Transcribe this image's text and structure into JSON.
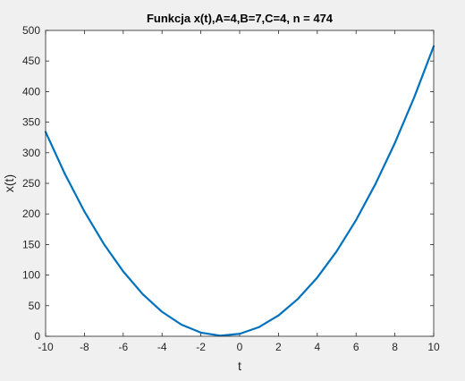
{
  "chart_data": {
    "type": "line",
    "title": "Funkcja x(t),A=4,B=7,C=4, n = 474",
    "xlabel": "t",
    "ylabel": "x(t)",
    "xlim": [
      -10,
      10
    ],
    "ylim": [
      0,
      500
    ],
    "xticks": [
      -10,
      -8,
      -6,
      -4,
      -2,
      0,
      2,
      4,
      6,
      8,
      10
    ],
    "yticks": [
      0,
      50,
      100,
      150,
      200,
      250,
      300,
      350,
      400,
      450,
      500
    ],
    "xtick_labels": [
      "-10",
      "-8",
      "-6",
      "-4",
      "-2",
      "0",
      "2",
      "4",
      "6",
      "8",
      "10"
    ],
    "ytick_labels": [
      "0",
      "50",
      "100",
      "150",
      "200",
      "250",
      "300",
      "350",
      "400",
      "450",
      "500"
    ],
    "grid": false,
    "series": [
      {
        "color": "#0072bd",
        "x": [
          -10,
          -9,
          -8,
          -7,
          -6,
          -5,
          -4,
          -3,
          -2,
          -1,
          0,
          1,
          2,
          3,
          4,
          5,
          6,
          7,
          8,
          9,
          10
        ],
        "y": [
          334,
          265,
          204,
          151,
          106,
          69,
          40,
          19,
          6,
          1,
          4,
          15,
          34,
          61,
          96,
          139,
          190,
          249,
          316,
          391,
          474
        ]
      }
    ]
  }
}
